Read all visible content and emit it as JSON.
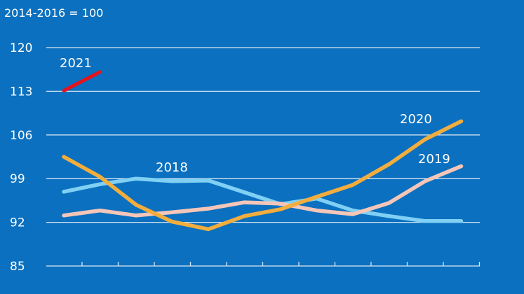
{
  "chart_data": {
    "type": "line",
    "index_note": "2014-2016 = 100",
    "x": [
      1,
      2,
      3,
      4,
      5,
      6,
      7,
      8,
      9,
      10,
      11,
      12
    ],
    "ylim": [
      85,
      120
    ],
    "yticks": [
      "85",
      "92",
      "99",
      "106",
      "113",
      "120"
    ],
    "grid": true,
    "colors": {
      "background": "#0b70bf",
      "grid": "#d6e6f5",
      "2021": "#e3141c",
      "2020": "#f3ad3d",
      "2019": "#f5c6b8",
      "2018": "#7fd0f4"
    },
    "series": [
      {
        "name": "2021",
        "values": [
          113.1,
          116.1,
          null,
          null,
          null,
          null,
          null,
          null,
          null,
          null,
          null,
          null
        ]
      },
      {
        "name": "2020",
        "values": [
          102.5,
          99.3,
          94.8,
          92.1,
          90.9,
          93.0,
          94.1,
          96.1,
          98.0,
          101.3,
          105.3,
          108.2
        ]
      },
      {
        "name": "2019",
        "values": [
          93.1,
          93.9,
          93.1,
          93.6,
          94.2,
          95.2,
          95.0,
          93.9,
          93.3,
          95.1,
          98.6,
          101.0
        ]
      },
      {
        "name": "2018",
        "values": [
          96.9,
          98.1,
          99.0,
          98.6,
          98.7,
          96.8,
          94.9,
          95.8,
          93.9,
          93.0,
          92.2,
          92.2
        ]
      }
    ],
    "series_labels": {
      "2021": "2021",
      "2020": "2020",
      "2019": "2019",
      "2018": "2018"
    }
  }
}
